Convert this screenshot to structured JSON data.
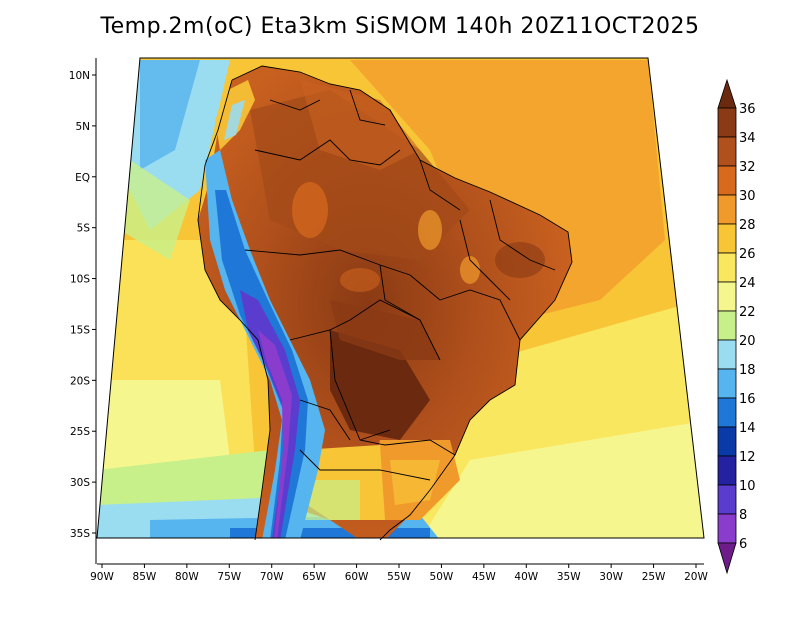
{
  "title": "Temp.2m(oC) Eta3km SiSMOM 140h 20Z11OCT2025",
  "map": {
    "lon_ticks": [
      "90W",
      "85W",
      "80W",
      "75W",
      "70W",
      "65W",
      "60W",
      "55W",
      "50W",
      "45W",
      "40W",
      "35W",
      "30W",
      "25W",
      "20W"
    ],
    "lat_ticks": [
      "10N",
      "5N",
      "EQ",
      "5S",
      "10S",
      "15S",
      "20S",
      "25S",
      "30S",
      "35S"
    ]
  },
  "colorbar": {
    "labels": [
      "36",
      "34",
      "32",
      "30",
      "28",
      "26",
      "24",
      "22",
      "20",
      "18",
      "16",
      "14",
      "12",
      "10",
      "8",
      "6"
    ],
    "colors": [
      "#6b2a10",
      "#8a3a14",
      "#b0501c",
      "#d86a1e",
      "#f19a2c",
      "#f8c537",
      "#fae760",
      "#f6f68f",
      "#c8f08a",
      "#9adcf0",
      "#56b4ee",
      "#1f78d8",
      "#0a3aa8",
      "#2422a0",
      "#5a3ccf",
      "#8a3ccc",
      "#6e1c8a"
    ]
  }
}
